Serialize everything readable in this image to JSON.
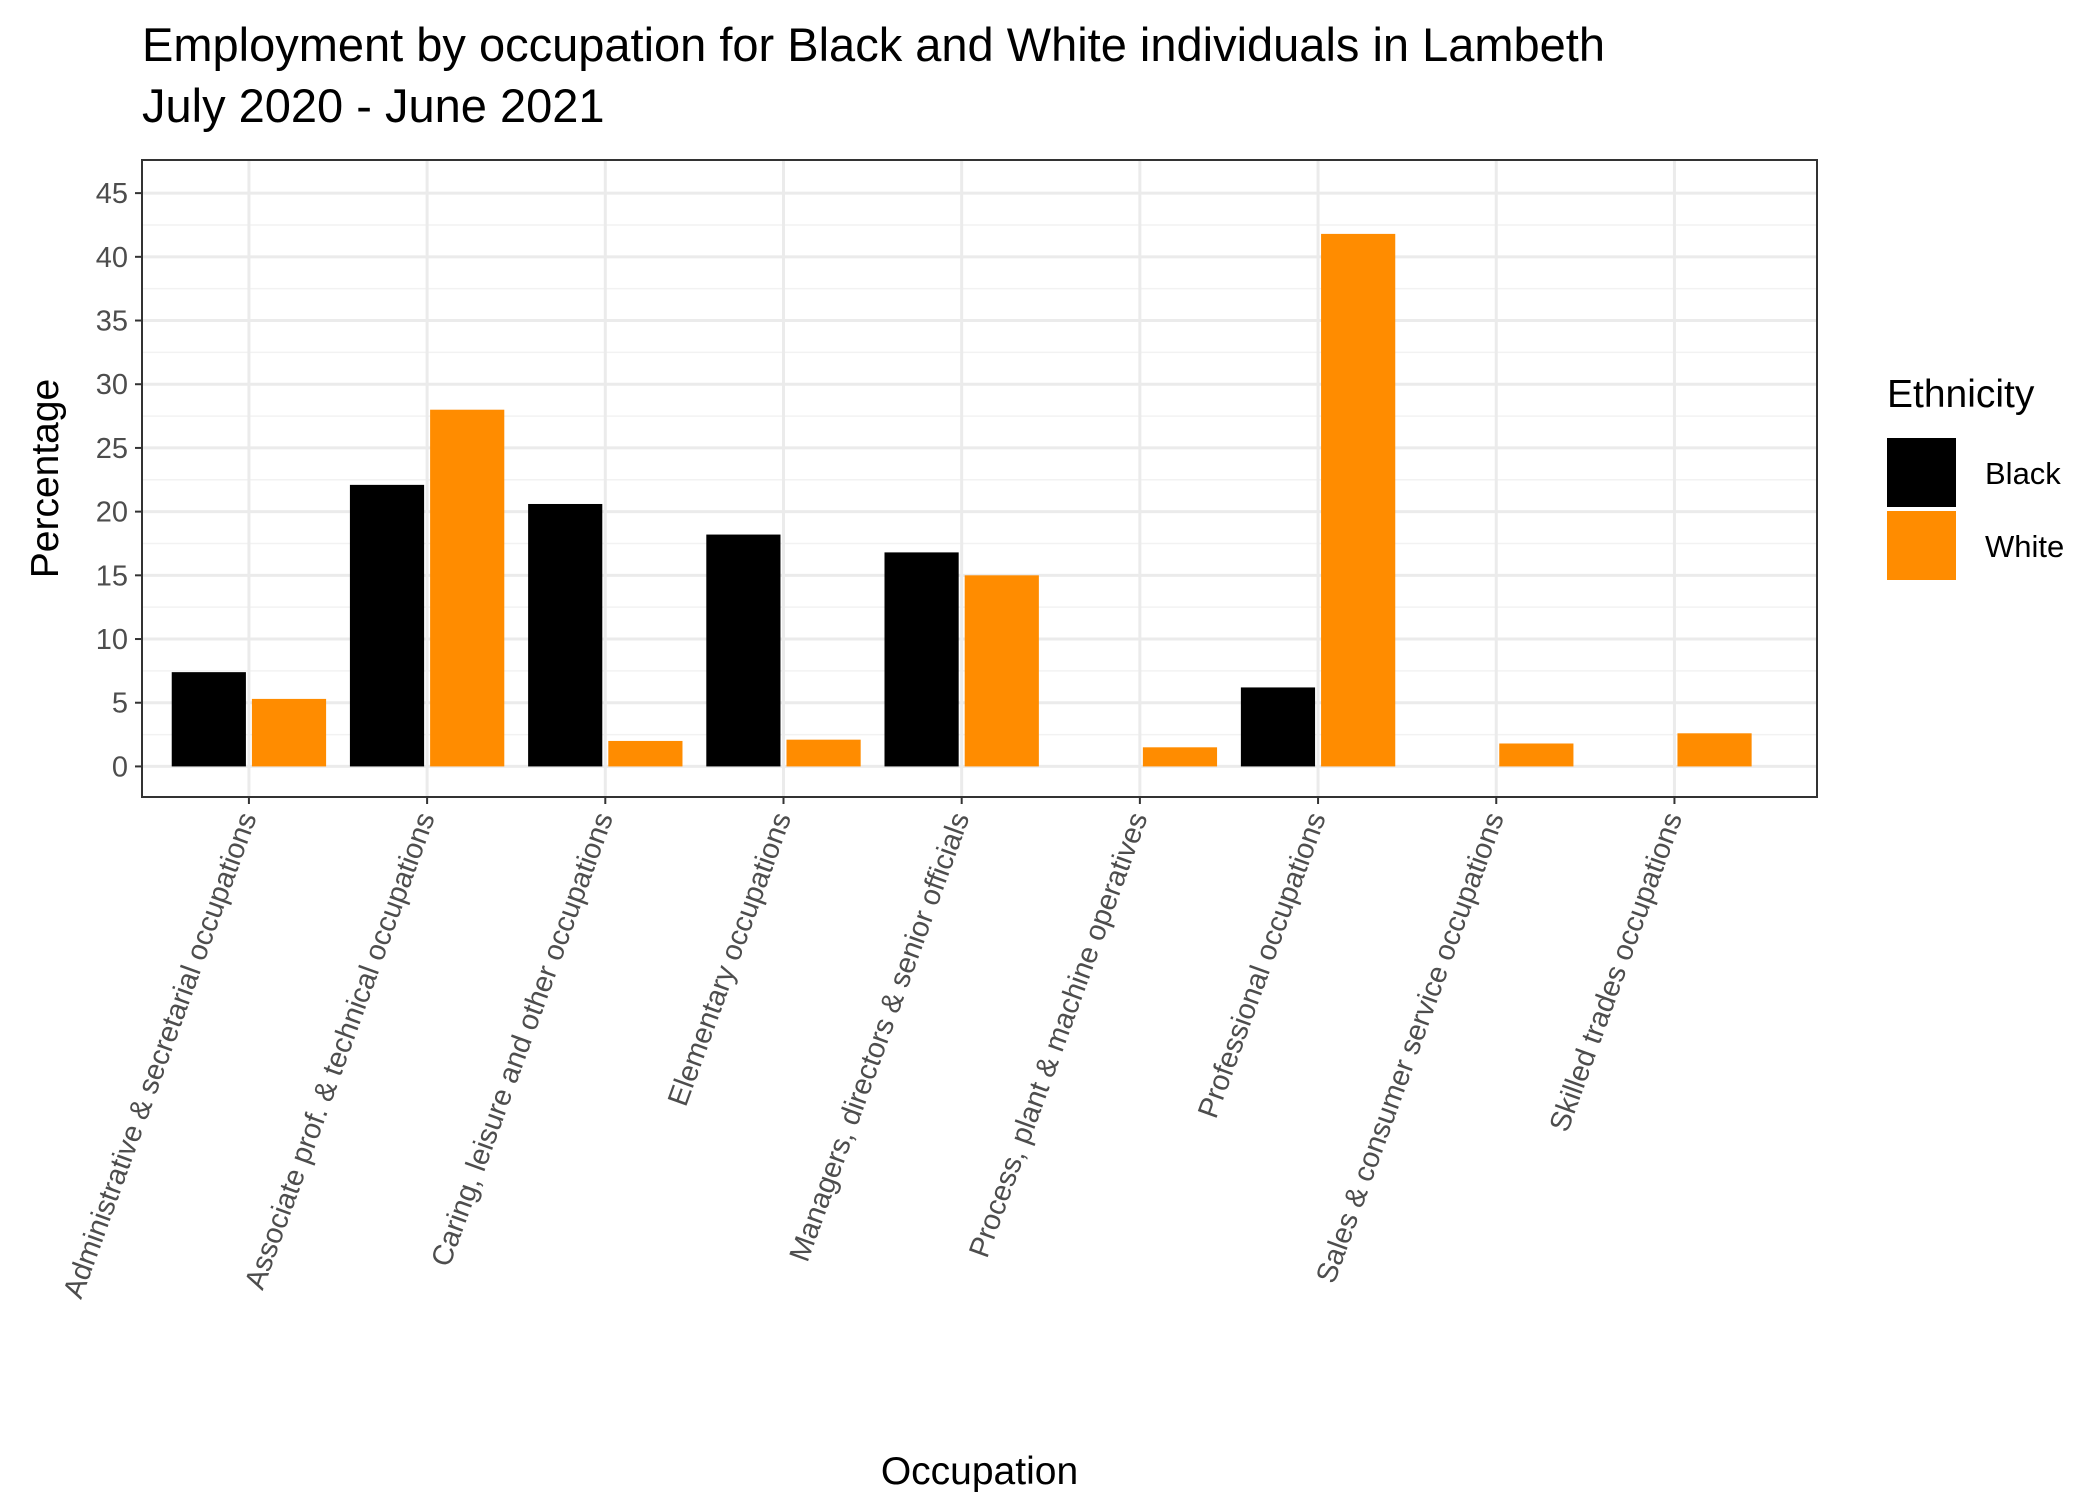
{
  "chart_data": {
    "type": "bar",
    "title": "Employment by occupation for Black and White individuals in Lambeth",
    "subtitle": "July 2020 - June 2021",
    "xlabel": "Occupation",
    "ylabel": "Percentage",
    "ylim": [
      -2.4,
      47.6
    ],
    "yticks": [
      0,
      5,
      10,
      15,
      20,
      25,
      30,
      35,
      40,
      45
    ],
    "grid": true,
    "legend_title": "Ethnicity",
    "legend_position": "right",
    "categories": [
      "Administrative & secretarial occupations",
      "Associate prof. & technical occupations",
      "Caring, leisure and other occupations",
      "Elementary occupations",
      "Managers, directors & senior officials",
      "Process, plant & machine operatives",
      "Professional occupations",
      "Sales & consumer service occupations",
      "Skilled trades occupations"
    ],
    "series": [
      {
        "name": "Black",
        "color": "#000000",
        "values": [
          7.4,
          22.1,
          20.6,
          18.2,
          16.8,
          null,
          6.2,
          null,
          null
        ]
      },
      {
        "name": "White",
        "color": "#ff8c00",
        "values": [
          5.3,
          28.0,
          2.0,
          2.1,
          15.0,
          1.5,
          41.8,
          1.8,
          2.6
        ]
      }
    ]
  }
}
